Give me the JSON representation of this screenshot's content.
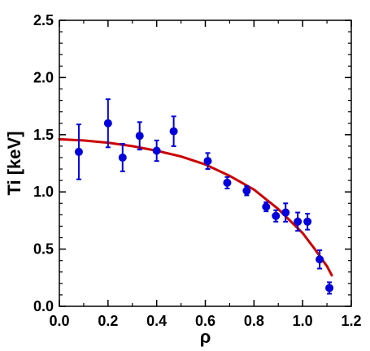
{
  "chart_data": {
    "type": "scatter",
    "title": "",
    "xlabel": "ρ",
    "ylabel": "Ti [keV]",
    "xlim": [
      0.0,
      1.2
    ],
    "ylim": [
      0.0,
      2.5
    ],
    "x_ticks": [
      "0.0",
      "0.2",
      "0.4",
      "0.6",
      "0.8",
      "1.0",
      "1.2"
    ],
    "y_ticks": [
      "0.0",
      "0.5",
      "1.0",
      "1.5",
      "2.0",
      "2.5"
    ],
    "grid": false,
    "legend": "none",
    "series": [
      {
        "kind": "scatter-errorbar",
        "color": "#0000dd",
        "points": [
          {
            "x": 0.08,
            "y": 1.35,
            "err": 0.24
          },
          {
            "x": 0.2,
            "y": 1.6,
            "err": 0.21
          },
          {
            "x": 0.26,
            "y": 1.3,
            "err": 0.12
          },
          {
            "x": 0.33,
            "y": 1.49,
            "err": 0.12
          },
          {
            "x": 0.4,
            "y": 1.36,
            "err": 0.09
          },
          {
            "x": 0.47,
            "y": 1.53,
            "err": 0.13
          },
          {
            "x": 0.61,
            "y": 1.27,
            "err": 0.07
          },
          {
            "x": 0.69,
            "y": 1.08,
            "err": 0.05
          },
          {
            "x": 0.77,
            "y": 1.01,
            "err": 0.04
          },
          {
            "x": 0.85,
            "y": 0.87,
            "err": 0.04
          },
          {
            "x": 0.89,
            "y": 0.79,
            "err": 0.05
          },
          {
            "x": 0.93,
            "y": 0.82,
            "err": 0.08
          },
          {
            "x": 0.98,
            "y": 0.74,
            "err": 0.08
          },
          {
            "x": 1.02,
            "y": 0.74,
            "err": 0.07
          },
          {
            "x": 1.07,
            "y": 0.41,
            "err": 0.08
          },
          {
            "x": 1.11,
            "y": 0.16,
            "err": 0.05
          }
        ]
      },
      {
        "kind": "line",
        "color": "#cc0000",
        "x": [
          0.0,
          0.1,
          0.2,
          0.3,
          0.4,
          0.5,
          0.6,
          0.7,
          0.8,
          0.9,
          1.0,
          1.05,
          1.1,
          1.12
        ],
        "y": [
          1.46,
          1.45,
          1.43,
          1.4,
          1.36,
          1.31,
          1.24,
          1.14,
          1.02,
          0.85,
          0.64,
          0.5,
          0.35,
          0.27
        ]
      }
    ]
  }
}
